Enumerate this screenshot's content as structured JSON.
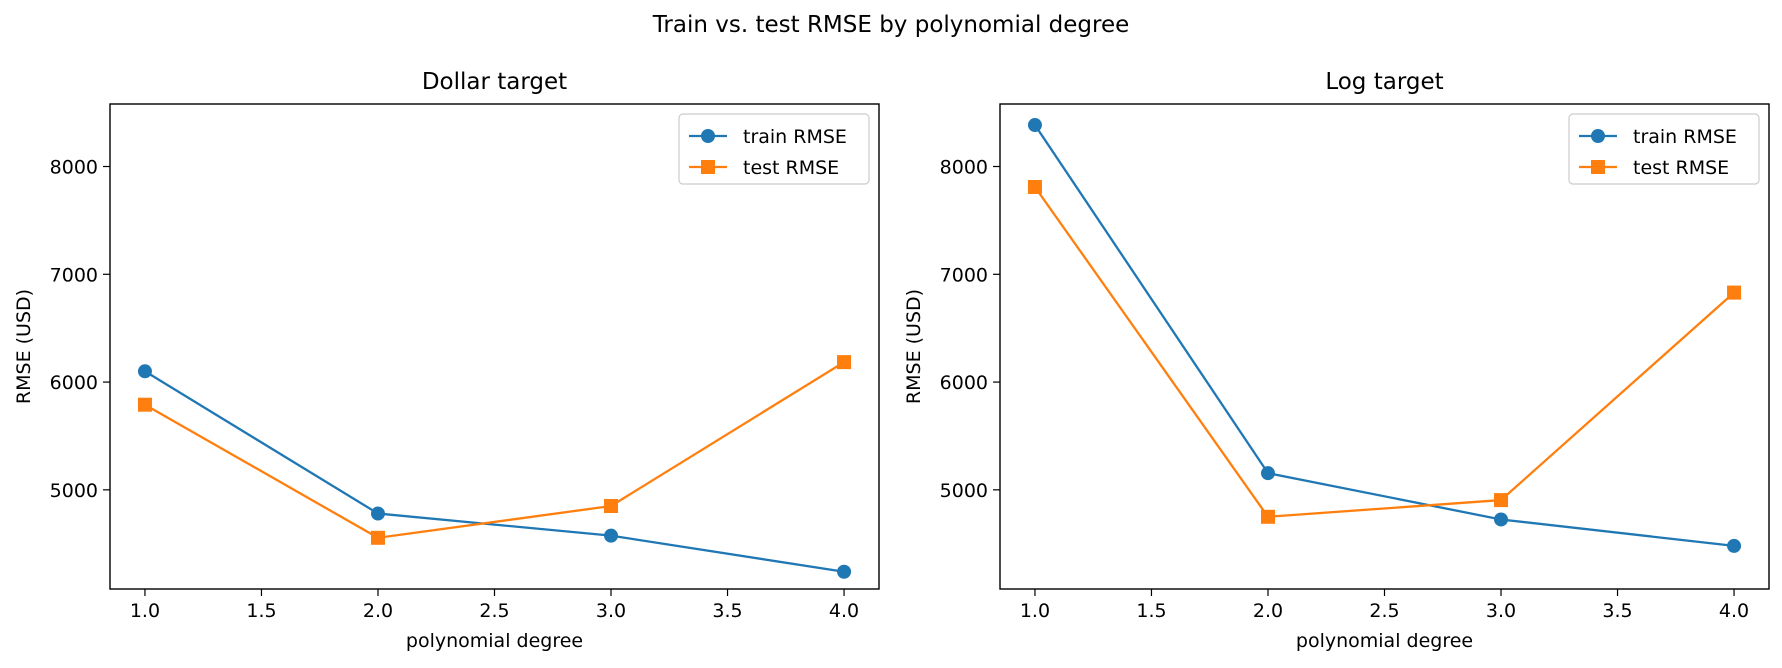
{
  "figure": {
    "title": "Train vs. test RMSE by polynomial degree"
  },
  "colors": {
    "train": "#1f77b4",
    "test": "#ff7f0e",
    "axis": "#000000",
    "legend_border": "#cccccc"
  },
  "chart_data": [
    {
      "type": "line",
      "title": "Dollar target",
      "xlabel": "polynomial degree",
      "ylabel": "RMSE (USD)",
      "xlim": [
        0.85,
        4.15
      ],
      "ylim": [
        4080,
        8580
      ],
      "xticks": [
        1.0,
        1.5,
        2.0,
        2.5,
        3.0,
        3.5,
        4.0
      ],
      "xtick_labels": [
        "1.0",
        "1.5",
        "2.0",
        "2.5",
        "3.0",
        "3.5",
        "4.0"
      ],
      "yticks": [
        5000,
        6000,
        7000,
        8000
      ],
      "ytick_labels": [
        "5000",
        "6000",
        "7000",
        "8000"
      ],
      "grid": false,
      "legend_position": "top-right",
      "series": [
        {
          "name": "train RMSE",
          "marker": "circle",
          "x": [
            1,
            2,
            3,
            4
          ],
          "y": [
            6100,
            4780,
            4575,
            4240
          ]
        },
        {
          "name": "test RMSE",
          "marker": "square",
          "x": [
            1,
            2,
            3,
            4
          ],
          "y": [
            5790,
            4555,
            4850,
            6185
          ]
        }
      ]
    },
    {
      "type": "line",
      "title": "Log target",
      "xlabel": "polynomial degree",
      "ylabel": "RMSE (USD)",
      "xlim": [
        0.85,
        4.15
      ],
      "ylim": [
        4080,
        8580
      ],
      "xticks": [
        1.0,
        1.5,
        2.0,
        2.5,
        3.0,
        3.5,
        4.0
      ],
      "xtick_labels": [
        "1.0",
        "1.5",
        "2.0",
        "2.5",
        "3.0",
        "3.5",
        "4.0"
      ],
      "yticks": [
        5000,
        6000,
        7000,
        8000
      ],
      "ytick_labels": [
        "5000",
        "6000",
        "7000",
        "8000"
      ],
      "grid": false,
      "legend_position": "top-right",
      "series": [
        {
          "name": "train RMSE",
          "marker": "circle",
          "x": [
            1,
            2,
            3,
            4
          ],
          "y": [
            8385,
            5155,
            4725,
            4480
          ]
        },
        {
          "name": "test RMSE",
          "marker": "square",
          "x": [
            1,
            2,
            3,
            4
          ],
          "y": [
            7810,
            4750,
            4905,
            6830
          ]
        }
      ]
    }
  ]
}
